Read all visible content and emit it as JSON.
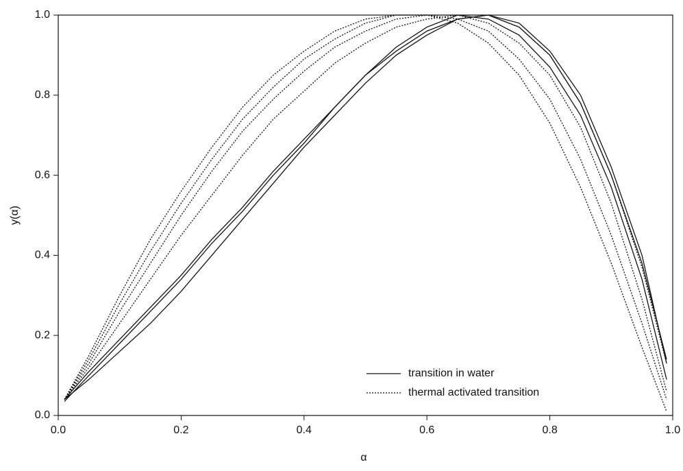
{
  "chart_data": {
    "type": "line",
    "x_label": "α",
    "y_label": "y(α)",
    "xlim": [
      0,
      1
    ],
    "ylim": [
      0,
      1
    ],
    "xticks": [
      {
        "value": 0,
        "label": "0.0"
      },
      {
        "value": 0.2,
        "label": "0.2"
      },
      {
        "value": 0.4,
        "label": "0.4"
      },
      {
        "value": 0.6,
        "label": "0.6"
      },
      {
        "value": 0.8,
        "label": "0.8"
      },
      {
        "value": 1,
        "label": "1.0"
      }
    ],
    "yticks": [
      {
        "value": 0,
        "label": "0.0"
      },
      {
        "value": 0.2,
        "label": "0.2"
      },
      {
        "value": 0.4,
        "label": "0.4"
      },
      {
        "value": 0.6,
        "label": "0.6"
      },
      {
        "value": 0.8,
        "label": "0.8"
      },
      {
        "value": 1,
        "label": "1.0"
      }
    ],
    "x": [
      0.01,
      0.05,
      0.1,
      0.15,
      0.2,
      0.25,
      0.3,
      0.35,
      0.4,
      0.45,
      0.5,
      0.55,
      0.6,
      0.65,
      0.7,
      0.75,
      0.8,
      0.85,
      0.9,
      0.95,
      0.99
    ],
    "series": [
      {
        "name": "transition in water",
        "color": "#111111",
        "dash": "solid",
        "lines": [
          {
            "values": [
              0.04,
              0.11,
              0.19,
              0.27,
              0.35,
              0.44,
              0.52,
              0.61,
              0.69,
              0.77,
              0.85,
              0.91,
              0.96,
              0.99,
              1.0,
              0.97,
              0.9,
              0.78,
              0.6,
              0.38,
              0.14
            ]
          },
          {
            "values": [
              0.04,
              0.09,
              0.16,
              0.23,
              0.31,
              0.4,
              0.49,
              0.58,
              0.67,
              0.75,
              0.83,
              0.9,
              0.95,
              0.99,
              1.0,
              0.98,
              0.91,
              0.8,
              0.62,
              0.4,
              0.13
            ]
          },
          {
            "values": [
              0.035,
              0.1,
              0.18,
              0.26,
              0.34,
              0.43,
              0.51,
              0.6,
              0.68,
              0.77,
              0.85,
              0.92,
              0.97,
              1.0,
              0.99,
              0.95,
              0.87,
              0.75,
              0.57,
              0.34,
              0.09
            ]
          }
        ]
      },
      {
        "name": "thermal activated transition",
        "color": "#111111",
        "dash": "dotted",
        "lines": [
          {
            "values": [
              0.04,
              0.15,
              0.3,
              0.44,
              0.56,
              0.67,
              0.77,
              0.85,
              0.91,
              0.96,
              0.99,
              1.0,
              1.0,
              0.98,
              0.93,
              0.85,
              0.73,
              0.57,
              0.38,
              0.17,
              0.01
            ]
          },
          {
            "values": [
              0.04,
              0.14,
              0.28,
              0.41,
              0.53,
              0.64,
              0.74,
              0.82,
              0.89,
              0.94,
              0.98,
              1.0,
              1.0,
              0.99,
              0.96,
              0.89,
              0.79,
              0.64,
              0.45,
              0.23,
              0.04
            ]
          },
          {
            "values": [
              0.04,
              0.13,
              0.26,
              0.38,
              0.5,
              0.61,
              0.71,
              0.79,
              0.86,
              0.92,
              0.96,
              0.99,
              1.0,
              1.0,
              0.98,
              0.93,
              0.85,
              0.72,
              0.53,
              0.29,
              0.06
            ]
          },
          {
            "values": [
              0.04,
              0.12,
              0.23,
              0.34,
              0.45,
              0.55,
              0.65,
              0.74,
              0.81,
              0.88,
              0.93,
              0.97,
              0.99,
              1.0,
              1.0,
              0.97,
              0.9,
              0.78,
              0.6,
              0.37,
              0.13
            ]
          }
        ]
      }
    ]
  }
}
